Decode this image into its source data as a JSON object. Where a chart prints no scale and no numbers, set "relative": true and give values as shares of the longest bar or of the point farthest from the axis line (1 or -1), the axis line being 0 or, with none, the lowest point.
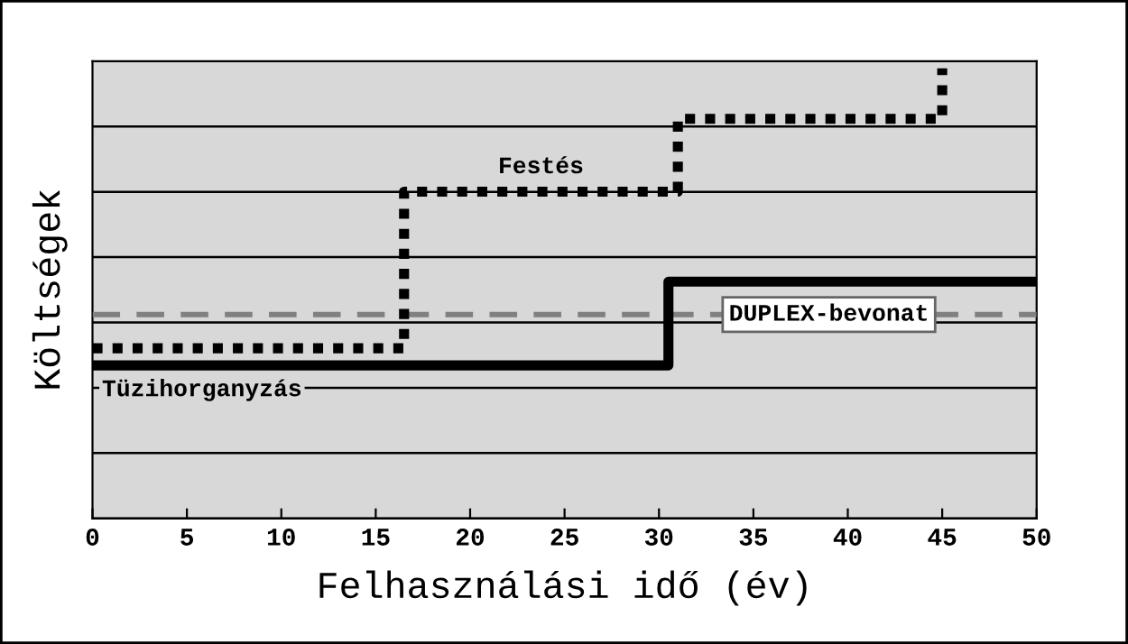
{
  "chart_data": {
    "type": "step",
    "relative": true,
    "xlabel": "Felhasználási idő (év)",
    "ylabel": "Költségek",
    "xlim": [
      0,
      50
    ],
    "xticks": [
      0,
      5,
      10,
      15,
      20,
      25,
      30,
      35,
      40,
      45,
      50
    ],
    "grid": "y",
    "legend": false,
    "tick_labels": "x",
    "series": [
      {
        "name": "Festés",
        "color": "#000000",
        "line_style": "dotted",
        "x": [
          0,
          16.5,
          31,
          45
        ],
        "values": [
          0.378,
          0.726,
          0.888,
          1
        ]
      },
      {
        "name": "Tüzihorganyzás",
        "color": "#000000",
        "line_style": "solid",
        "x": [
          0,
          30.5,
          50
        ],
        "values": [
          0.34,
          0.526,
          0.526
        ]
      },
      {
        "name": "DUPLEX-bevonat",
        "type": "line",
        "color": "#808080",
        "line_style": "dashed",
        "x": [
          0,
          50
        ],
        "values": [
          0.453,
          0.453
        ]
      }
    ]
  }
}
